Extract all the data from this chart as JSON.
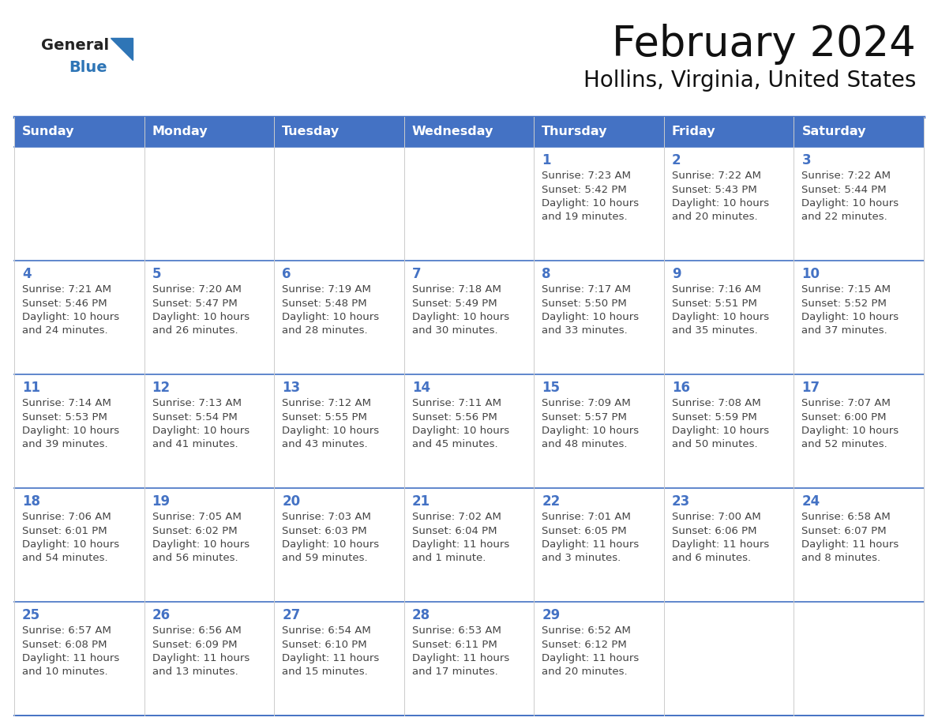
{
  "title": "February 2024",
  "subtitle": "Hollins, Virginia, United States",
  "days_of_week": [
    "Sunday",
    "Monday",
    "Tuesday",
    "Wednesday",
    "Thursday",
    "Friday",
    "Saturday"
  ],
  "header_bg": "#4472C4",
  "header_text": "#FFFFFF",
  "cell_bg": "#FFFFFF",
  "border_color": "#4472C4",
  "row_line_color": "#4472C4",
  "col_line_color": "#CCCCCC",
  "day_num_color": "#4472C4",
  "text_color": "#444444",
  "logo_general_color": "#222222",
  "logo_blue_color": "#2E75B6",
  "logo_triangle_color": "#2E75B6",
  "calendar_data": [
    [
      {
        "day": null,
        "sunrise": null,
        "sunset": null,
        "daylight": null
      },
      {
        "day": null,
        "sunrise": null,
        "sunset": null,
        "daylight": null
      },
      {
        "day": null,
        "sunrise": null,
        "sunset": null,
        "daylight": null
      },
      {
        "day": null,
        "sunrise": null,
        "sunset": null,
        "daylight": null
      },
      {
        "day": 1,
        "sunrise": "7:23 AM",
        "sunset": "5:42 PM",
        "daylight": "10 hours\nand 19 minutes."
      },
      {
        "day": 2,
        "sunrise": "7:22 AM",
        "sunset": "5:43 PM",
        "daylight": "10 hours\nand 20 minutes."
      },
      {
        "day": 3,
        "sunrise": "7:22 AM",
        "sunset": "5:44 PM",
        "daylight": "10 hours\nand 22 minutes."
      }
    ],
    [
      {
        "day": 4,
        "sunrise": "7:21 AM",
        "sunset": "5:46 PM",
        "daylight": "10 hours\nand 24 minutes."
      },
      {
        "day": 5,
        "sunrise": "7:20 AM",
        "sunset": "5:47 PM",
        "daylight": "10 hours\nand 26 minutes."
      },
      {
        "day": 6,
        "sunrise": "7:19 AM",
        "sunset": "5:48 PM",
        "daylight": "10 hours\nand 28 minutes."
      },
      {
        "day": 7,
        "sunrise": "7:18 AM",
        "sunset": "5:49 PM",
        "daylight": "10 hours\nand 30 minutes."
      },
      {
        "day": 8,
        "sunrise": "7:17 AM",
        "sunset": "5:50 PM",
        "daylight": "10 hours\nand 33 minutes."
      },
      {
        "day": 9,
        "sunrise": "7:16 AM",
        "sunset": "5:51 PM",
        "daylight": "10 hours\nand 35 minutes."
      },
      {
        "day": 10,
        "sunrise": "7:15 AM",
        "sunset": "5:52 PM",
        "daylight": "10 hours\nand 37 minutes."
      }
    ],
    [
      {
        "day": 11,
        "sunrise": "7:14 AM",
        "sunset": "5:53 PM",
        "daylight": "10 hours\nand 39 minutes."
      },
      {
        "day": 12,
        "sunrise": "7:13 AM",
        "sunset": "5:54 PM",
        "daylight": "10 hours\nand 41 minutes."
      },
      {
        "day": 13,
        "sunrise": "7:12 AM",
        "sunset": "5:55 PM",
        "daylight": "10 hours\nand 43 minutes."
      },
      {
        "day": 14,
        "sunrise": "7:11 AM",
        "sunset": "5:56 PM",
        "daylight": "10 hours\nand 45 minutes."
      },
      {
        "day": 15,
        "sunrise": "7:09 AM",
        "sunset": "5:57 PM",
        "daylight": "10 hours\nand 48 minutes."
      },
      {
        "day": 16,
        "sunrise": "7:08 AM",
        "sunset": "5:59 PM",
        "daylight": "10 hours\nand 50 minutes."
      },
      {
        "day": 17,
        "sunrise": "7:07 AM",
        "sunset": "6:00 PM",
        "daylight": "10 hours\nand 52 minutes."
      }
    ],
    [
      {
        "day": 18,
        "sunrise": "7:06 AM",
        "sunset": "6:01 PM",
        "daylight": "10 hours\nand 54 minutes."
      },
      {
        "day": 19,
        "sunrise": "7:05 AM",
        "sunset": "6:02 PM",
        "daylight": "10 hours\nand 56 minutes."
      },
      {
        "day": 20,
        "sunrise": "7:03 AM",
        "sunset": "6:03 PM",
        "daylight": "10 hours\nand 59 minutes."
      },
      {
        "day": 21,
        "sunrise": "7:02 AM",
        "sunset": "6:04 PM",
        "daylight": "11 hours\nand 1 minute."
      },
      {
        "day": 22,
        "sunrise": "7:01 AM",
        "sunset": "6:05 PM",
        "daylight": "11 hours\nand 3 minutes."
      },
      {
        "day": 23,
        "sunrise": "7:00 AM",
        "sunset": "6:06 PM",
        "daylight": "11 hours\nand 6 minutes."
      },
      {
        "day": 24,
        "sunrise": "6:58 AM",
        "sunset": "6:07 PM",
        "daylight": "11 hours\nand 8 minutes."
      }
    ],
    [
      {
        "day": 25,
        "sunrise": "6:57 AM",
        "sunset": "6:08 PM",
        "daylight": "11 hours\nand 10 minutes."
      },
      {
        "day": 26,
        "sunrise": "6:56 AM",
        "sunset": "6:09 PM",
        "daylight": "11 hours\nand 13 minutes."
      },
      {
        "day": 27,
        "sunrise": "6:54 AM",
        "sunset": "6:10 PM",
        "daylight": "11 hours\nand 15 minutes."
      },
      {
        "day": 28,
        "sunrise": "6:53 AM",
        "sunset": "6:11 PM",
        "daylight": "11 hours\nand 17 minutes."
      },
      {
        "day": 29,
        "sunrise": "6:52 AM",
        "sunset": "6:12 PM",
        "daylight": "11 hours\nand 20 minutes."
      },
      {
        "day": null,
        "sunrise": null,
        "sunset": null,
        "daylight": null
      },
      {
        "day": null,
        "sunrise": null,
        "sunset": null,
        "daylight": null
      }
    ]
  ]
}
